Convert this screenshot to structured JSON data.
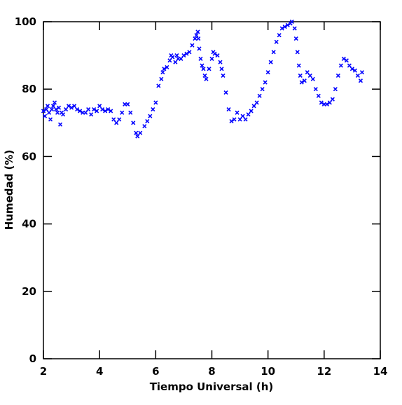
{
  "chart_data": {
    "type": "scatter",
    "xlabel": "Tiempo Universal (h)",
    "ylabel": "Humedad (%)",
    "xlim": [
      2,
      14
    ],
    "ylim": [
      0,
      100
    ],
    "xticks": [
      2,
      4,
      6,
      8,
      10,
      12,
      14
    ],
    "yticks": [
      0,
      20,
      40,
      60,
      80,
      100
    ],
    "series": [
      {
        "color": "#0000ff",
        "x": [
          2.0,
          2.05,
          2.1,
          2.15,
          2.2,
          2.25,
          2.3,
          2.35,
          2.4,
          2.45,
          2.5,
          2.55,
          2.6,
          2.65,
          2.7,
          2.8,
          2.9,
          3.0,
          3.1,
          3.2,
          3.3,
          3.4,
          3.5,
          3.6,
          3.7,
          3.8,
          3.9,
          4.0,
          4.1,
          4.2,
          4.3,
          4.4,
          4.5,
          4.6,
          4.7,
          4.8,
          4.9,
          5.0,
          5.1,
          5.2,
          5.3,
          5.35,
          5.45,
          5.6,
          5.7,
          5.8,
          5.9,
          6.0,
          6.1,
          6.2,
          6.25,
          6.3,
          6.4,
          6.5,
          6.55,
          6.6,
          6.7,
          6.75,
          6.8,
          6.9,
          7.0,
          7.1,
          7.2,
          7.3,
          7.4,
          7.45,
          7.5,
          7.52,
          7.55,
          7.6,
          7.65,
          7.7,
          7.75,
          7.8,
          7.9,
          8.0,
          8.05,
          8.1,
          8.2,
          8.3,
          8.35,
          8.4,
          8.5,
          8.6,
          8.7,
          8.8,
          8.9,
          9.0,
          9.1,
          9.2,
          9.3,
          9.4,
          9.5,
          9.6,
          9.7,
          9.8,
          9.9,
          10.0,
          10.1,
          10.2,
          10.3,
          10.4,
          10.5,
          10.6,
          10.7,
          10.8,
          10.85,
          10.95,
          11.0,
          11.05,
          11.1,
          11.15,
          11.2,
          11.3,
          11.4,
          11.5,
          11.6,
          11.7,
          11.8,
          11.9,
          12.0,
          12.1,
          12.2,
          12.3,
          12.4,
          12.5,
          12.6,
          12.7,
          12.8,
          12.9,
          13.0,
          13.1,
          13.2,
          13.3,
          13.35
        ],
        "values": [
          73.5,
          72,
          74,
          75,
          73,
          71,
          74,
          75,
          76,
          74,
          73,
          74.5,
          69.5,
          73,
          72.5,
          74,
          75,
          74.5,
          75,
          74,
          73.5,
          73,
          73,
          74,
          72.5,
          74,
          73.5,
          75,
          74,
          73.5,
          74,
          73.5,
          71,
          70,
          71,
          73,
          75.5,
          75.5,
          73,
          70,
          67,
          66,
          67,
          69,
          70.5,
          72,
          74,
          76,
          81,
          83,
          85,
          86,
          86.5,
          88.5,
          90,
          89.5,
          88,
          90,
          89,
          89,
          90,
          90.5,
          91,
          93,
          95,
          96,
          97,
          95,
          92,
          89,
          87,
          86,
          84,
          83,
          86,
          89,
          91,
          90.5,
          90,
          88,
          86,
          84,
          79,
          74,
          70.5,
          71,
          73,
          71,
          72,
          71,
          72.5,
          73.5,
          75,
          76,
          78,
          80,
          82,
          85,
          88,
          91,
          94,
          96,
          98,
          98.5,
          99,
          99.5,
          100,
          98,
          95,
          91,
          87,
          84,
          82,
          82.5,
          85,
          84,
          83,
          80,
          78,
          76,
          75.5,
          75.5,
          76,
          77,
          80,
          84,
          87,
          89,
          88.5,
          87,
          86,
          85.5,
          84,
          82.5,
          85
        ]
      }
    ]
  }
}
